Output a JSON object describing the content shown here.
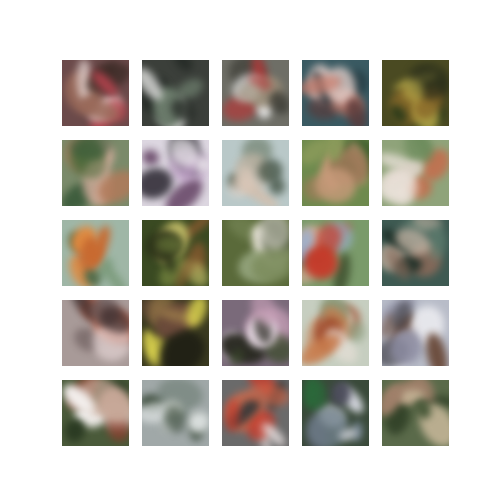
{
  "image_grid": {
    "rows": 5,
    "cols": 5,
    "tiles": [
      {
        "bg": "#6b4a4a",
        "c": [
          "#b8444f",
          "#e8d9d6",
          "#3a2a25",
          "#9a6a5a"
        ]
      },
      {
        "bg": "#3b3f3a",
        "c": [
          "#f0f0ee",
          "#1e2420",
          "#6a7a6a",
          "#2a2f2a"
        ]
      },
      {
        "bg": "#6e6e66",
        "c": [
          "#b03a3a",
          "#efefef",
          "#3a3a33",
          "#9c8f7a"
        ]
      },
      {
        "bg": "#3a5a62",
        "c": [
          "#c77a6a",
          "#1f3138",
          "#e9d4cf",
          "#5a3a3a"
        ]
      },
      {
        "bg": "#4a4a22",
        "c": [
          "#c8b850",
          "#2a3a1a",
          "#8a6a2a",
          "#1e2418"
        ]
      },
      {
        "bg": "#7a8a6a",
        "c": [
          "#b07a5a",
          "#d8b0a0",
          "#4a6a3a",
          "#3a5a3a"
        ]
      },
      {
        "bg": "#dcd6e0",
        "c": [
          "#2a2630",
          "#c0a0c8",
          "#f4f2f4",
          "#6a4a6a"
        ]
      },
      {
        "bg": "#b9c8c8",
        "c": [
          "#3a4a3a",
          "#e8d4c8",
          "#7a8a7a",
          "#d2bfae"
        ]
      },
      {
        "bg": "#6e8a4e",
        "c": [
          "#c89a7a",
          "#3a5a2a",
          "#a07a5a",
          "#8a9a5a"
        ]
      },
      {
        "bg": "#8fa37a",
        "c": [
          "#f0e6e0",
          "#c86a4a",
          "#6a8a5a",
          "#dad0c4"
        ]
      },
      {
        "bg": "#9fb6a6",
        "c": [
          "#c86a30",
          "#e08a40",
          "#7a9a7a",
          "#4a6a4a"
        ]
      },
      {
        "bg": "#3a4a22",
        "c": [
          "#8a5a30",
          "#c6c06a",
          "#2a3018",
          "#6a7a3a"
        ]
      },
      {
        "bg": "#5a6a3a",
        "c": [
          "#f2ece4",
          "#2a3a1a",
          "#a0b08a",
          "#7a8a5a"
        ]
      },
      {
        "bg": "#7a9a6a",
        "c": [
          "#c83a2a",
          "#3a4a2a",
          "#e8b0a0",
          "#9ab0d0"
        ]
      },
      {
        "bg": "#3e5a52",
        "c": [
          "#c8b8a8",
          "#1e3028",
          "#8a6a5a",
          "#6a8a7a"
        ]
      },
      {
        "bg": "#a89a98",
        "c": [
          "#3a2a2a",
          "#c85a3a",
          "#e8d8d8",
          "#6a5a5a"
        ]
      },
      {
        "bg": "#3a3a20",
        "c": [
          "#e0d850",
          "#6a4a3a",
          "#1e1e14",
          "#9a7a4a"
        ]
      },
      {
        "bg": "#7a6a7a",
        "c": [
          "#c8a0b8",
          "#3a4a2a",
          "#f0e6ee",
          "#2a2a22"
        ]
      },
      {
        "bg": "#c6cec0",
        "c": [
          "#c87a4a",
          "#a04a2a",
          "#e8e0d8",
          "#8a9a7a"
        ]
      },
      {
        "bg": "#b8bcc8",
        "c": [
          "#6a4a3a",
          "#eeeef2",
          "#8a8aa0",
          "#4a4a52"
        ]
      },
      {
        "bg": "#4a5a3a",
        "c": [
          "#f4f0ee",
          "#8a3a2a",
          "#2a3a22",
          "#c8a898"
        ]
      },
      {
        "bg": "#a0a8a8",
        "c": [
          "#3a4a3a",
          "#e8ecec",
          "#6a7a70",
          "#b0b8b0"
        ]
      },
      {
        "bg": "#6a6a6a",
        "c": [
          "#c83a2a",
          "#e8e0e0",
          "#3a3a3a",
          "#d86a4a"
        ]
      },
      {
        "bg": "#3a4a3a",
        "c": [
          "#dadce4",
          "#2a6a3a",
          "#4a4a5a",
          "#7a8a9a"
        ]
      },
      {
        "bg": "#5a6a4a",
        "c": [
          "#a0806a",
          "#2a3a22",
          "#c8b89a",
          "#4a5a3a"
        ]
      }
    ]
  }
}
